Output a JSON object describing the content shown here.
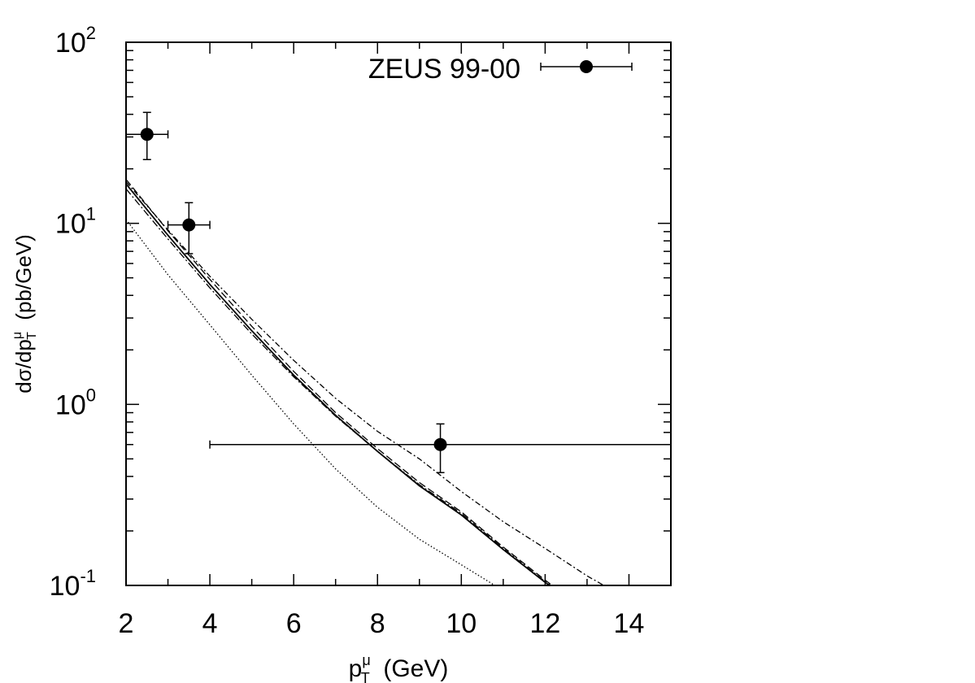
{
  "chart_data": {
    "type": "scatter",
    "title": "",
    "xlabel": {
      "base": "p",
      "sup": "μ",
      "sub": "T",
      "unit": "(GeV)"
    },
    "ylabel": {
      "text": "dσ/dp",
      "sup": "μ",
      "sub": "T",
      "unit": "(pb/GeV)"
    },
    "xlim": [
      2,
      15
    ],
    "ylim": [
      0.1,
      100
    ],
    "yscale": "log",
    "grid": false,
    "legend_position": "top-right",
    "x_ticks": [
      "2",
      "4",
      "6",
      "8",
      "10",
      "12",
      "14"
    ],
    "y_ticks": [
      {
        "base": "10",
        "exp": "-1"
      },
      {
        "base": "10",
        "exp": "0"
      },
      {
        "base": "10",
        "exp": "1"
      },
      {
        "base": "10",
        "exp": "2"
      }
    ],
    "data_series": {
      "name": "ZEUS 99-00",
      "points": [
        {
          "x": 2.5,
          "y": 31,
          "xerr": [
            2.0,
            3.0
          ],
          "yerr": [
            22.5,
            41
          ]
        },
        {
          "x": 3.5,
          "y": 9.8,
          "xerr": [
            3.0,
            4.0
          ],
          "yerr": [
            6.8,
            13
          ]
        },
        {
          "x": 9.5,
          "y": 0.6,
          "xerr": [
            4.0,
            15.0
          ],
          "yerr": [
            0.42,
            0.78
          ]
        }
      ]
    },
    "curves": [
      {
        "style": "solid",
        "x": [
          2,
          3,
          4,
          5,
          6,
          7,
          8,
          9,
          10,
          11,
          12,
          12.3
        ],
        "y": [
          16.5,
          8.6,
          4.6,
          2.55,
          1.45,
          0.87,
          0.55,
          0.355,
          0.245,
          0.158,
          0.104,
          0.093
        ]
      },
      {
        "style": "dashed",
        "x": [
          2,
          3,
          4,
          5,
          6,
          7,
          8,
          9,
          10,
          11,
          12,
          12.3
        ],
        "y": [
          17.5,
          9.1,
          4.9,
          2.7,
          1.52,
          0.9,
          0.57,
          0.37,
          0.255,
          0.163,
          0.107,
          0.095
        ]
      },
      {
        "style": "dash-dot",
        "x": [
          2,
          3,
          4,
          5,
          6,
          7,
          8,
          9,
          10,
          11,
          12,
          12.3
        ],
        "y": [
          15.5,
          8.2,
          4.4,
          2.45,
          1.42,
          0.86,
          0.55,
          0.36,
          0.25,
          0.16,
          0.105,
          0.094
        ]
      },
      {
        "style": "dash-dot-upper",
        "x": [
          2,
          3,
          4,
          5,
          6,
          7,
          8,
          9,
          10,
          11,
          12,
          13,
          13.4
        ],
        "y": [
          17,
          9.2,
          5.1,
          2.95,
          1.75,
          1.08,
          0.71,
          0.5,
          0.33,
          0.225,
          0.16,
          0.113,
          0.1
        ]
      },
      {
        "style": "dotted",
        "x": [
          2,
          3,
          4,
          5,
          6,
          7,
          8,
          9,
          10,
          10.8
        ],
        "y": [
          10.5,
          5.2,
          2.75,
          1.45,
          0.78,
          0.44,
          0.27,
          0.18,
          0.13,
          0.1
        ]
      }
    ]
  }
}
